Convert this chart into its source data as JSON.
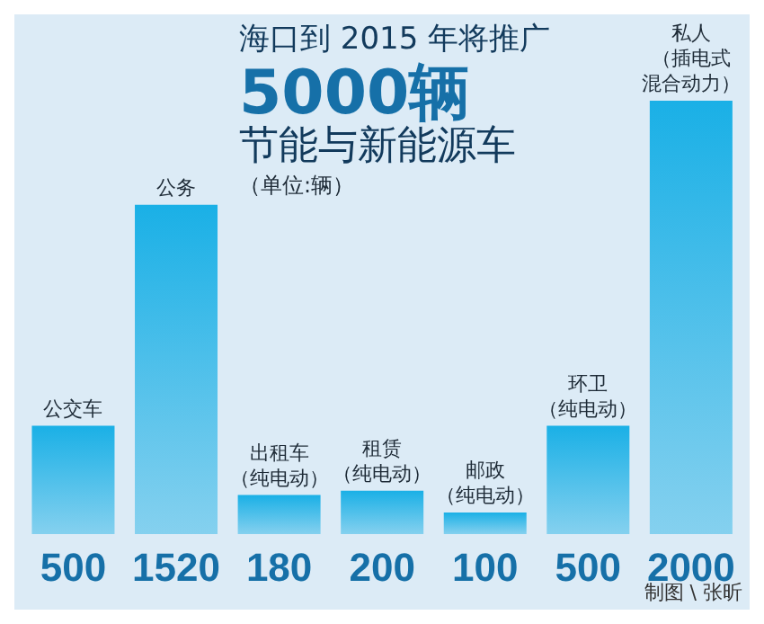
{
  "chart_data": {
    "type": "bar",
    "title": "海口到 2015 年将推广5000辆节能与新能源车",
    "subtitle": "（单位:辆）",
    "categories": [
      "公交车",
      "公务",
      "出租车（纯电动）",
      "租赁（纯电动）",
      "邮政（纯电动）",
      "环卫（纯电动）",
      "私人（插电式混合动力）"
    ],
    "values": [
      500,
      1520,
      180,
      200,
      100,
      500,
      2000
    ],
    "color": "#1ab0e6",
    "data_labels": true,
    "annotations": [
      "制图 \\ 张昕"
    ]
  }
}
